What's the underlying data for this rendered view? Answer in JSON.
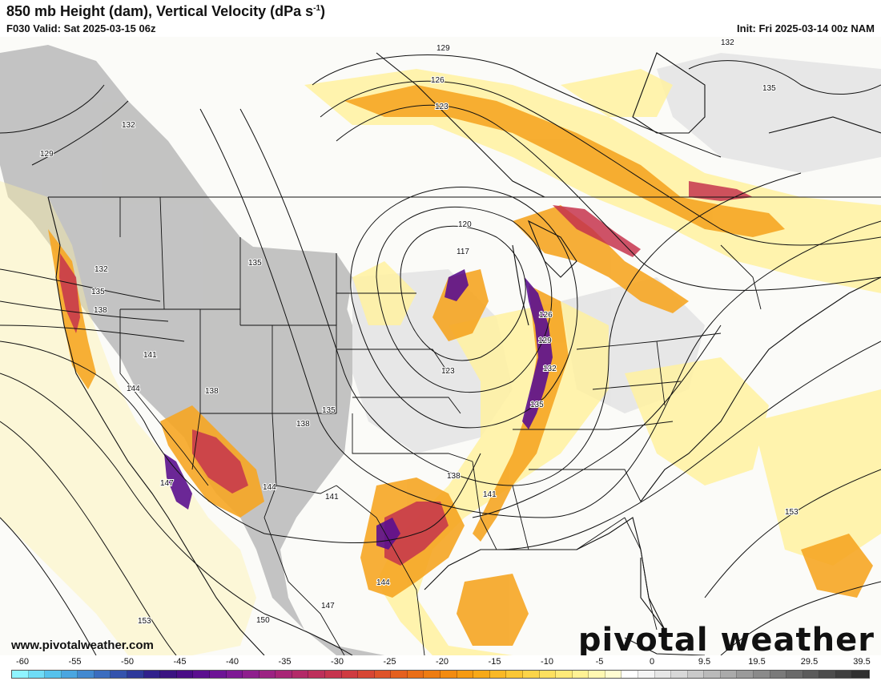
{
  "header": {
    "title": "850 mb Height (dam), Vertical Velocity (dPa s",
    "title_sup": "-1",
    "title_end": ")",
    "valid": "F030 Valid: Sat 2025-03-15 06z",
    "init": "Init: Fri 2025-03-14 00z NAM"
  },
  "map": {
    "contour_labels": [
      "129",
      "132",
      "126",
      "123",
      "135",
      "132",
      "129",
      "120",
      "117",
      "132",
      "135",
      "138",
      "135",
      "141",
      "144",
      "138",
      "138",
      "135",
      "123",
      "126",
      "129",
      "132",
      "135",
      "147",
      "144",
      "141",
      "138",
      "141",
      "144",
      "147",
      "150",
      "153",
      "153"
    ]
  },
  "footer": {
    "url": "www.pivotalweather.com",
    "brand": "pivotal weather"
  },
  "colorbar": {
    "ticks": [
      "-60",
      "-55",
      "-50",
      "-45",
      "-40",
      "-35",
      "-30",
      "-25",
      "-20",
      "-15",
      "-10",
      "-5",
      "0",
      "9.5",
      "19.5",
      "29.5",
      "39.5"
    ],
    "colors": [
      "#8ff4ff",
      "#6fdcf6",
      "#56c2ec",
      "#4aa6e0",
      "#4289d0",
      "#3b6dbf",
      "#3453ad",
      "#2e3a9b",
      "#30218c",
      "#3b1381",
      "#4a0d86",
      "#5b0f8f",
      "#6d1495",
      "#7e1994",
      "#8e1f8d",
      "#9c2383",
      "#a82676",
      "#b32a68",
      "#bd2f5b",
      "#c6344e",
      "#cf3b41",
      "#d74634",
      "#de5329",
      "#e4601f",
      "#e96e17",
      "#ee7c12",
      "#f28b10",
      "#f59a12",
      "#f7a919",
      "#f9b825",
      "#fbc735",
      "#fcd449",
      "#fde05f",
      "#feea79",
      "#fff294",
      "#fff8b2",
      "#fffcd2",
      "#ffffff",
      "#f4f4f4",
      "#e6e6e6",
      "#d8d8d8",
      "#c9c9c9",
      "#bababa",
      "#aaaaaa",
      "#9a9a9a",
      "#8a8a8a",
      "#7a7a7a",
      "#6a6a6a",
      "#5b5b5b",
      "#4c4c4c",
      "#3e3e3e",
      "#303030"
    ]
  }
}
